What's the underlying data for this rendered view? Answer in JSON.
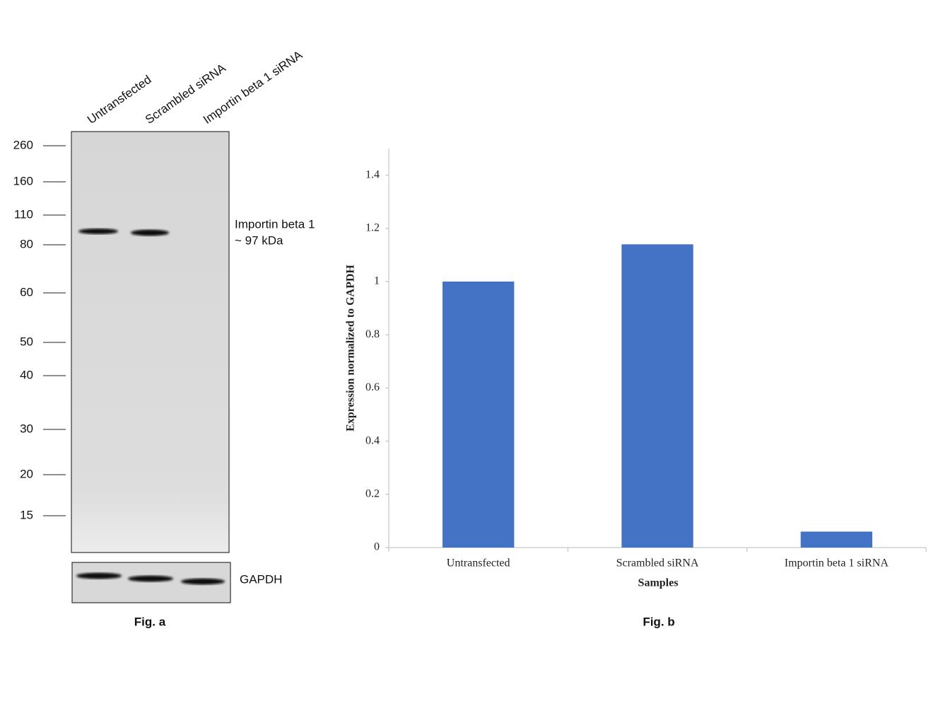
{
  "blot": {
    "lanes": [
      "Untransfected",
      "Scrambled siRNA",
      "Importin beta 1 siRNA"
    ],
    "markers": [
      260,
      160,
      110,
      80,
      60,
      50,
      40,
      30,
      20,
      15
    ],
    "band_label": [
      "Importin beta 1",
      "~ 97 kDa"
    ],
    "loading_label": "GAPDH",
    "caption": "Fig. a"
  },
  "chart_data": {
    "type": "bar",
    "categories": [
      "Untransfected",
      "Scrambled siRNA",
      "Importin beta 1 siRNA"
    ],
    "values": [
      1,
      1.14,
      0.06
    ],
    "color": "#4472c4",
    "ylim": [
      0,
      1.5
    ],
    "yticks": [
      0,
      0.2,
      0.4,
      0.6,
      0.8,
      1,
      1.2,
      1.4
    ],
    "xlabel": "Samples",
    "ylabel": "Expression normalized to GAPDH",
    "caption": "Fig. b"
  }
}
